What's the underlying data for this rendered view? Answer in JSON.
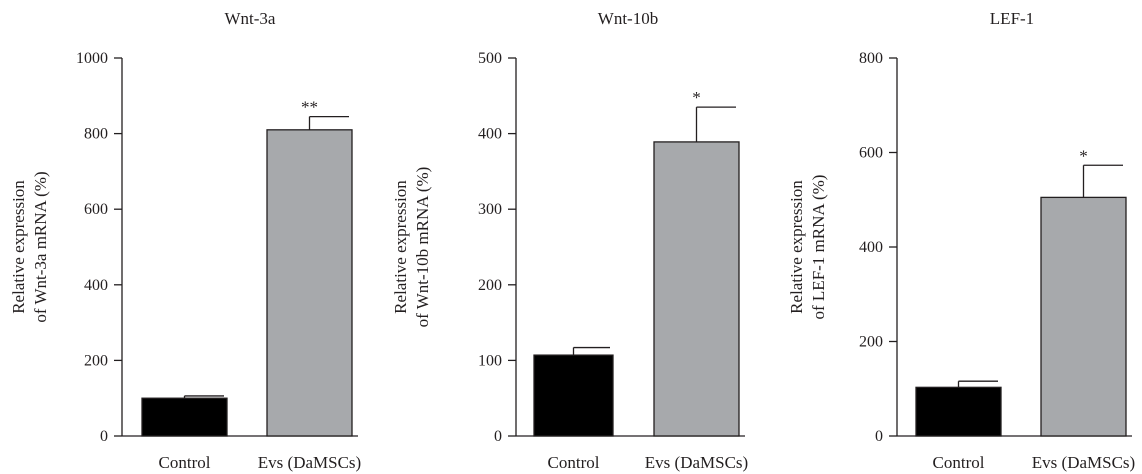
{
  "chart_data": [
    {
      "type": "bar",
      "title": "Wnt-3a",
      "ylabel": [
        "Relative expression",
        "of Wnt-3a mRNA (%)"
      ],
      "categories": [
        "Control",
        "Evs (DaMSCs)"
      ],
      "values": [
        100,
        810
      ],
      "errors": [
        6,
        35
      ],
      "significance": [
        "",
        "**"
      ],
      "ylim": [
        0,
        1000
      ],
      "yticks": [
        0,
        200,
        400,
        600,
        800,
        1000
      ],
      "colors": [
        "#000000",
        "#a7a9ac"
      ]
    },
    {
      "type": "bar",
      "title": "Wnt-10b",
      "ylabel": [
        "Relative expression",
        "of Wnt-10b mRNA (%)"
      ],
      "categories": [
        "Control",
        "Evs (DaMSCs)"
      ],
      "values": [
        107,
        389
      ],
      "errors": [
        10,
        46
      ],
      "significance": [
        "",
        "*"
      ],
      "ylim": [
        0,
        500
      ],
      "yticks": [
        0,
        100,
        200,
        300,
        400,
        500
      ],
      "colors": [
        "#000000",
        "#a7a9ac"
      ]
    },
    {
      "type": "bar",
      "title": "LEF-1",
      "ylabel": [
        "Relative expression",
        "of LEF-1 mRNA (%)"
      ],
      "categories": [
        "Control",
        "Evs (DaMSCs)"
      ],
      "values": [
        103,
        505
      ],
      "errors": [
        13,
        68
      ],
      "significance": [
        "",
        "*"
      ],
      "ylim": [
        0,
        800
      ],
      "yticks": [
        0,
        200,
        400,
        600,
        800
      ],
      "colors": [
        "#000000",
        "#a7a9ac"
      ]
    }
  ]
}
